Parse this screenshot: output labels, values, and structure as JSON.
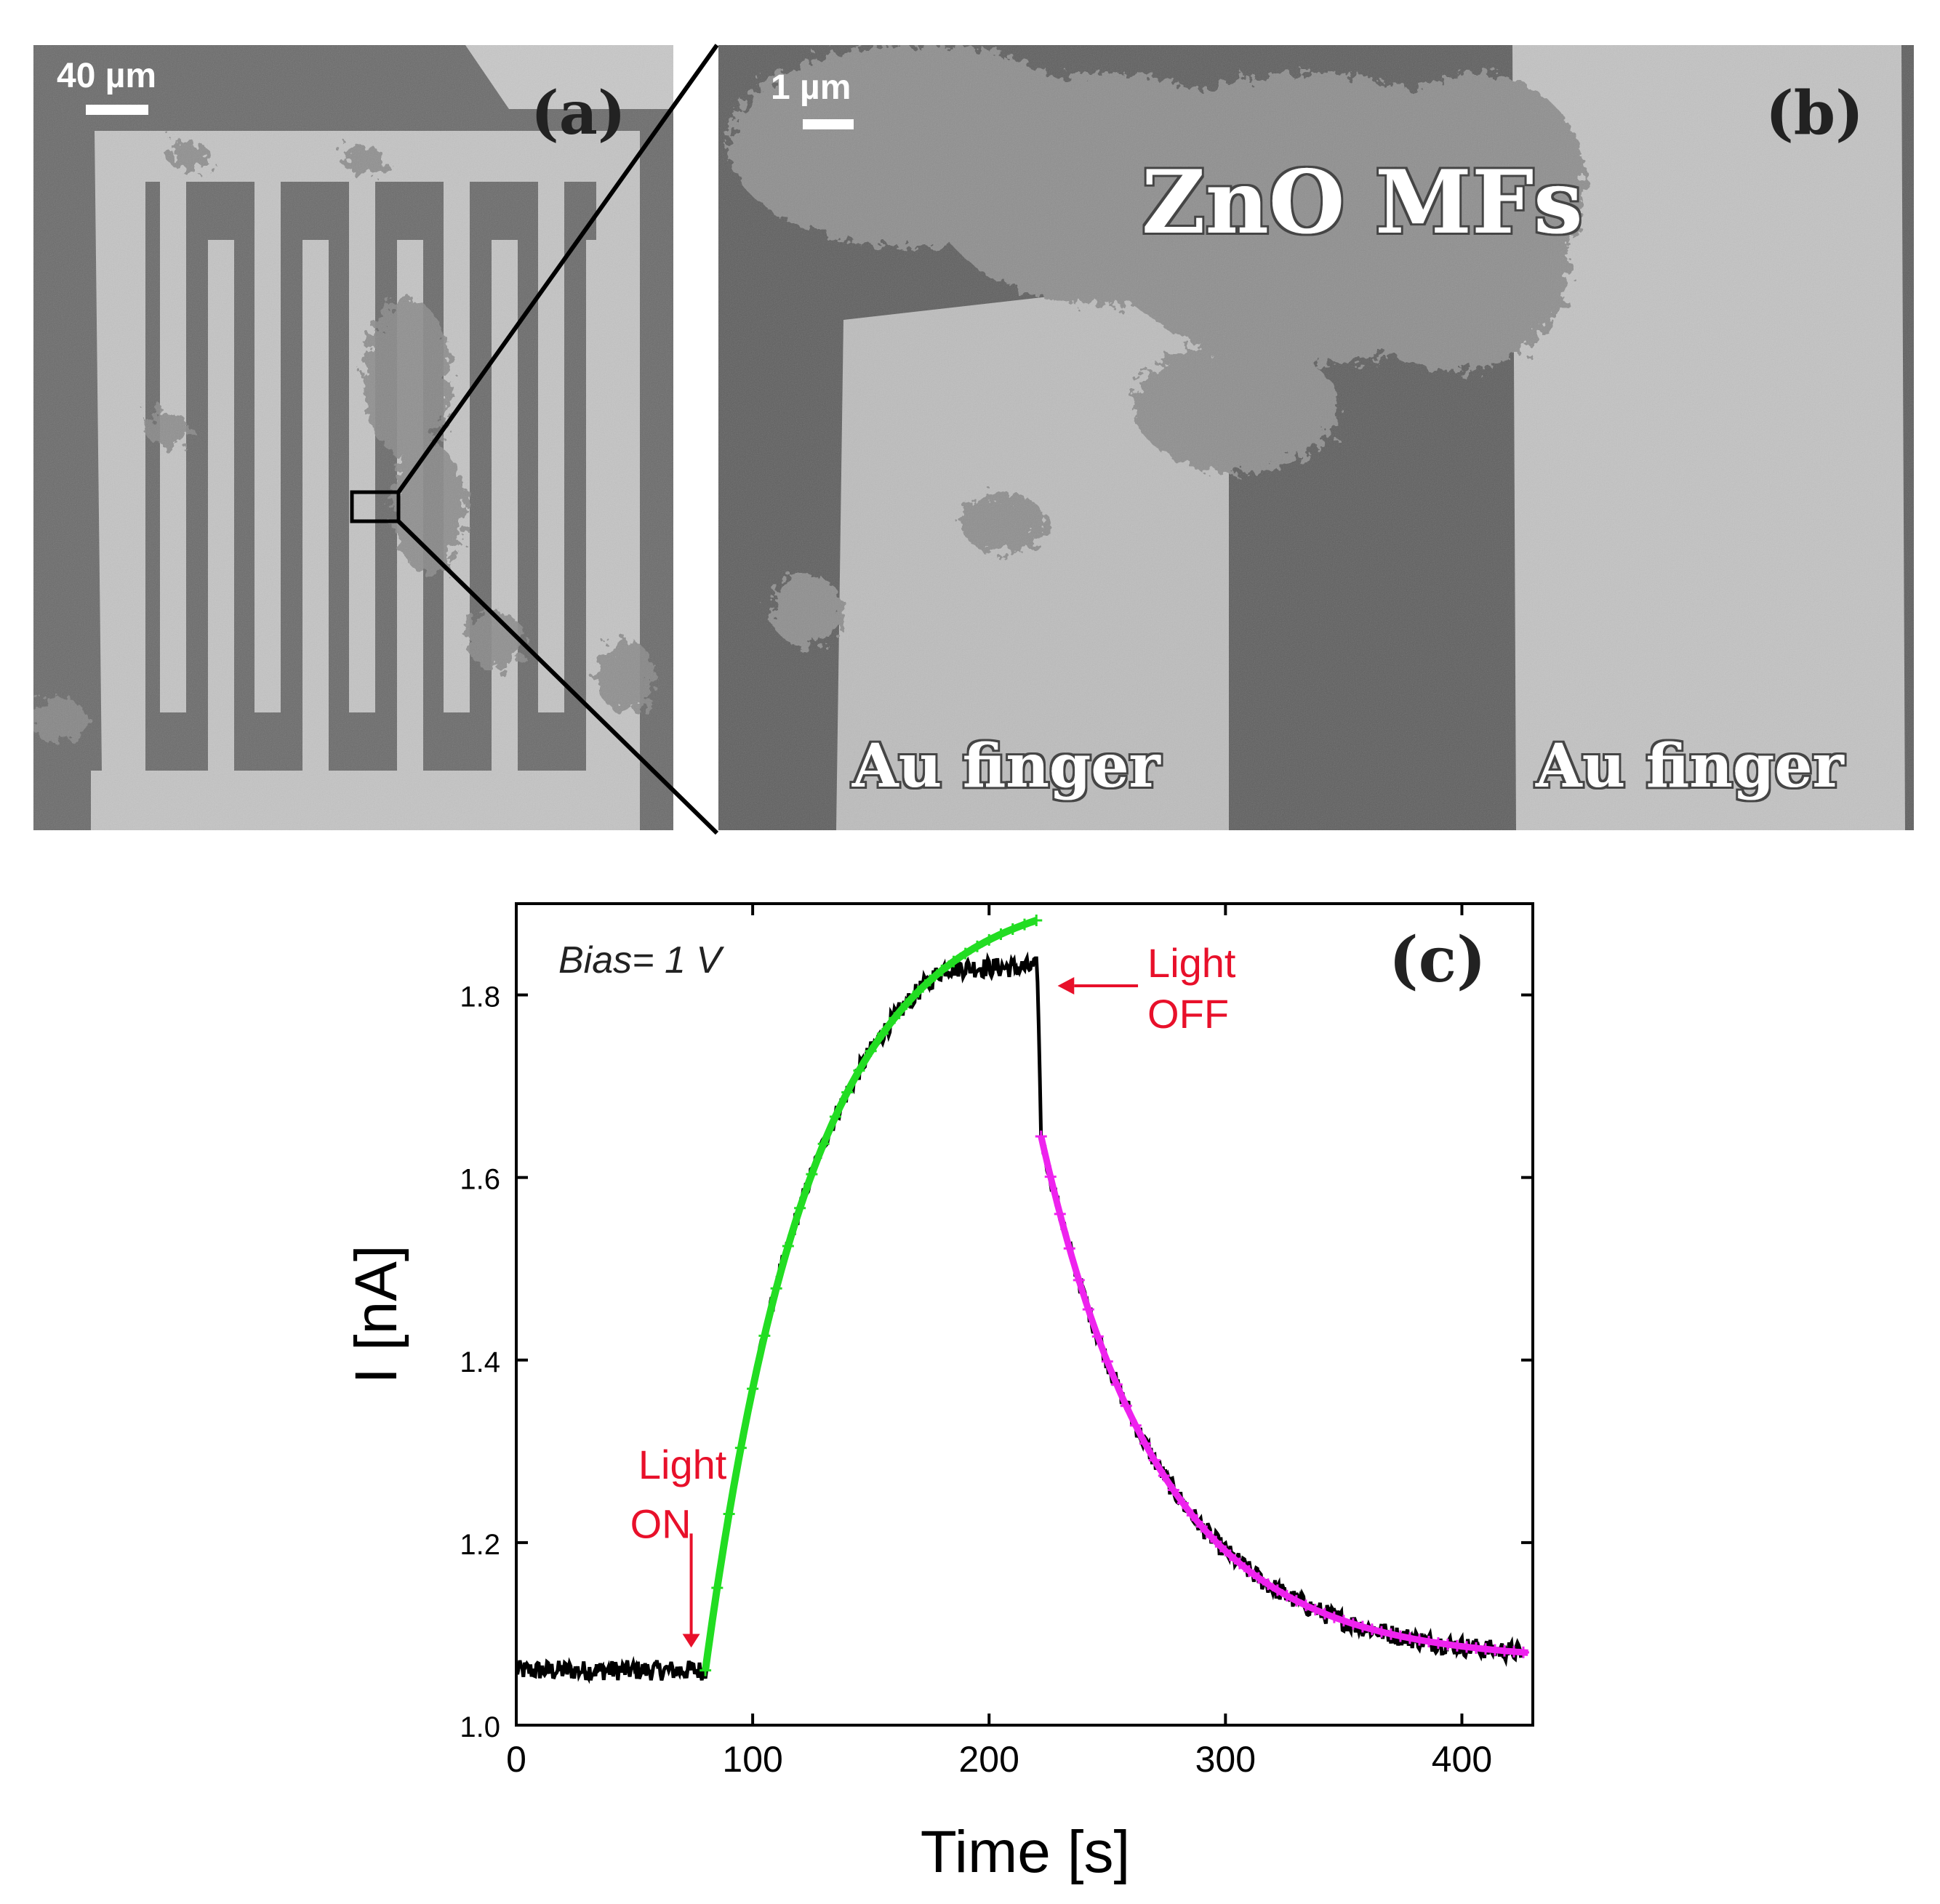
{
  "panel_a": {
    "label": "(a)",
    "scale_bar": "40 µm"
  },
  "panel_b": {
    "label": "(b)",
    "scale_bar": "1 µm",
    "material_label": "ZnO MFs",
    "electrode_left_label": "Au finger",
    "electrode_right_label": "Au finger"
  },
  "chart_data": {
    "type": "line",
    "panel_label": "(c)",
    "xlabel": "Time [s]",
    "ylabel": "I [nA]",
    "xlim": [
      0,
      430
    ],
    "ylim": [
      1.0,
      1.9
    ],
    "xticks": [
      0,
      100,
      200,
      300,
      400
    ],
    "yticks": [
      1.0,
      1.2,
      1.4,
      1.6,
      1.8
    ],
    "ytick_labels": [
      "1.0",
      "1.2",
      "1.4",
      "1.6",
      "1.8"
    ],
    "grid": false,
    "annotations": {
      "bias": "Bias= 1 V",
      "light_on": [
        "Light",
        "ON"
      ],
      "light_off": [
        "Light",
        "OFF"
      ]
    },
    "measurement": {
      "baseline": 1.06,
      "on_time": 80,
      "off_time": 220,
      "end_time": 425,
      "rise_tau": 45,
      "i_saturation": 1.92,
      "peak": 1.82,
      "decay_offset": 1.07,
      "decay_tau": 50,
      "drop_to": 1.645,
      "drop_time": 222
    },
    "series": [
      {
        "color": "#000000",
        "role": "measured current"
      },
      {
        "color": "#22dd22",
        "role": "rise fit"
      },
      {
        "color": "#ee22ee",
        "role": "decay fit"
      }
    ],
    "colors": {
      "annotation": "#e8102a",
      "measured": "#000000",
      "rise_fit": "#22dd22",
      "decay_fit": "#ee22ee"
    }
  }
}
